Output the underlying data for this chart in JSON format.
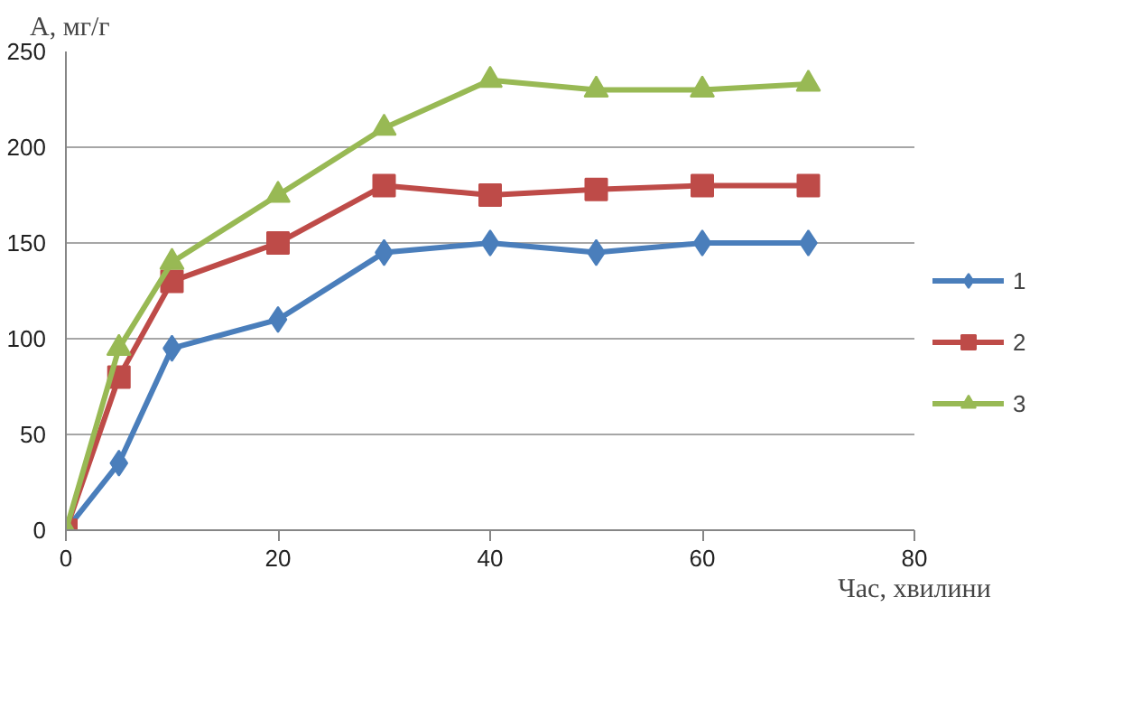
{
  "chart_data": {
    "type": "line",
    "xlabel": "Час, хвилини",
    "ylabel": "А, мг/г",
    "x": [
      0,
      5,
      10,
      20,
      30,
      40,
      50,
      60,
      70
    ],
    "series": [
      {
        "name": "1",
        "color": "#4a7ebb",
        "marker": "diamond",
        "values": [
          0,
          35,
          95,
          110,
          145,
          150,
          145,
          150,
          150
        ]
      },
      {
        "name": "2",
        "color": "#be4b48",
        "marker": "square",
        "values": [
          0,
          80,
          130,
          150,
          180,
          175,
          178,
          180,
          180
        ]
      },
      {
        "name": "3",
        "color": "#98b954",
        "marker": "triangle",
        "values": [
          0,
          95,
          140,
          175,
          210,
          235,
          230,
          230,
          233
        ]
      }
    ],
    "xlim": [
      0,
      80
    ],
    "xticks": [
      0,
      20,
      40,
      60,
      80
    ],
    "ylim": [
      0,
      250
    ],
    "yticks": [
      0,
      50,
      100,
      150,
      200,
      250
    ],
    "grid": "y",
    "legend": "right",
    "line_style": "solid"
  }
}
